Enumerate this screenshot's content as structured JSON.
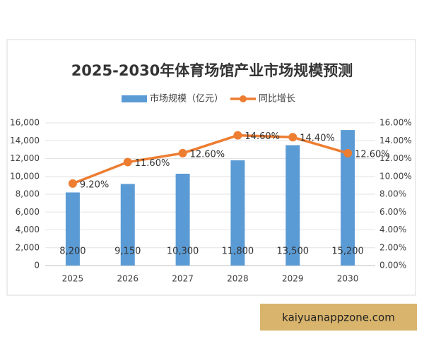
{
  "chart_data": {
    "type": "bar",
    "title": "2025-2030年体育场馆产业市场规模预测",
    "categories": [
      "2025",
      "2026",
      "2027",
      "2028",
      "2029",
      "2030"
    ],
    "series": [
      {
        "name": "市场规模（亿元）",
        "color": "#5b9bd5",
        "values": [
          8200,
          9150,
          10300,
          11800,
          13500,
          15200
        ],
        "value_labels": [
          "8,200",
          "9,150",
          "10,300",
          "11,800",
          "13,500",
          "15,200"
        ]
      },
      {
        "name": "同比增长",
        "type": "line",
        "axis": "y2",
        "color": "#ed7d31",
        "values": [
          9.2,
          11.6,
          12.6,
          14.6,
          14.4,
          12.6
        ],
        "value_labels": [
          "9.20%",
          "11.60%",
          "12.60%",
          "14.60%",
          "14.40%",
          "12.60%"
        ]
      }
    ],
    "ylim": [
      0,
      16000
    ],
    "yticks": [
      0,
      {
        "value": 2000,
        "label": "2,000"
      },
      {
        "value": 4000,
        "label": "4,000"
      },
      {
        "value": 6000,
        "label": "6,000"
      },
      {
        "value": 8000,
        "label": "8,000"
      },
      {
        "value": 10000,
        "label": "10,000"
      },
      {
        "value": 12000,
        "label": "12,000"
      },
      {
        "value": 14000,
        "label": "14,000"
      },
      {
        "value": 16000,
        "label": "16,000"
      }
    ],
    "y2lim": [
      0,
      16
    ],
    "y2ticks": [
      {
        "value": 0,
        "label": "0.00%"
      },
      {
        "value": 2,
        "label": "2.00%"
      },
      {
        "value": 4,
        "label": "4.00%"
      },
      {
        "value": 6,
        "label": "6.00%"
      },
      {
        "value": 8,
        "label": "8.00%"
      },
      {
        "value": 10,
        "label": "10.00%"
      },
      {
        "value": 12,
        "label": "12.00%"
      },
      {
        "value": 14,
        "label": "14.00%"
      },
      {
        "value": 16,
        "label": "16.00%"
      }
    ],
    "grid": true,
    "watermark": "kaiyuanappzone.com"
  }
}
